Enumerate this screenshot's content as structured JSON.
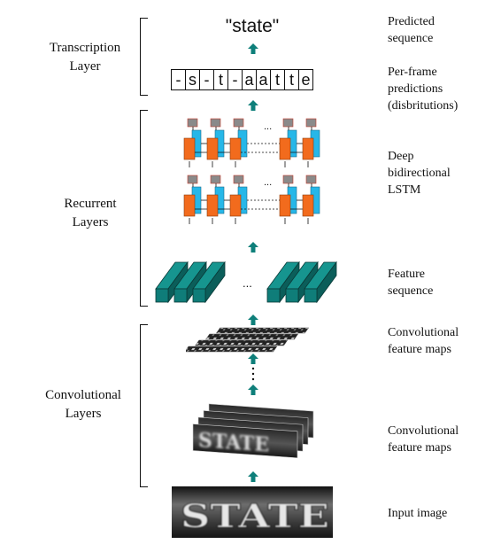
{
  "layers": {
    "transcription": "Transcription\nLayer",
    "recurrent": "Recurrent\nLayers",
    "convolutional": "Convolutional\nLayers"
  },
  "labels": {
    "predicted_sequence": "Predicted\nsequence",
    "per_frame": "Per-frame\npredictions\n(disbritutions)",
    "deep_lstm": "Deep\nbidirectional\nLSTM",
    "feature_sequence": "Feature\nsequence",
    "conv_maps_top": "Convolutional\nfeature maps",
    "conv_maps_bottom": "Convolutional\nfeature maps",
    "input_image": "Input image"
  },
  "predicted_word": "\"state\"",
  "frame_predictions": [
    "-",
    "s",
    "-",
    "t",
    "-",
    "a",
    "a",
    "t",
    "t",
    "e"
  ],
  "ellipsis": "...",
  "image_text": "STATE",
  "colors": {
    "arrow": "#0e7f7a",
    "lstm_cell": "#f26b1d",
    "lstm_back": "#26b7e8",
    "lstm_out": "#8a8a8a",
    "feature_block": "#0f7d79"
  }
}
